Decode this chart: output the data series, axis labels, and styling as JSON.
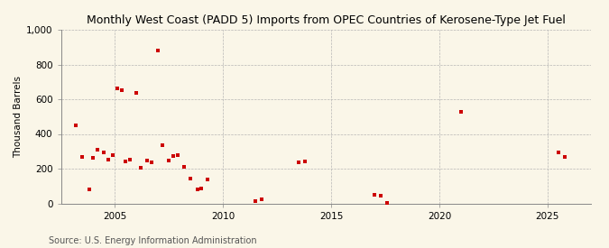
{
  "title": "Monthly West Coast (PADD 5) Imports from OPEC Countries of Kerosene-Type Jet Fuel",
  "ylabel": "Thousand Barrels",
  "source": "Source: U.S. Energy Information Administration",
  "background_color": "#faf6e8",
  "point_color": "#cc0000",
  "xlim": [
    2002.5,
    2027.0
  ],
  "ylim": [
    0,
    1000
  ],
  "xticks": [
    2005,
    2010,
    2015,
    2020,
    2025
  ],
  "yticks": [
    0,
    200,
    400,
    600,
    800,
    1000
  ],
  "ytick_labels": [
    "0",
    "200",
    "400",
    "600",
    "800",
    "1,000"
  ],
  "scatter_x": [
    2003.2,
    2003.5,
    2003.8,
    2004.0,
    2004.2,
    2004.5,
    2004.7,
    2004.9,
    2005.1,
    2005.3,
    2005.5,
    2005.7,
    2006.0,
    2006.2,
    2006.5,
    2006.7,
    2007.0,
    2007.2,
    2007.5,
    2007.7,
    2007.9,
    2008.2,
    2008.5,
    2008.8,
    2009.0,
    2009.3,
    2011.5,
    2011.8,
    2013.5,
    2013.8,
    2017.0,
    2017.3,
    2017.6,
    2021.0,
    2025.5,
    2025.8
  ],
  "scatter_y": [
    450,
    270,
    80,
    260,
    310,
    295,
    250,
    280,
    660,
    650,
    240,
    250,
    635,
    205,
    245,
    235,
    880,
    335,
    245,
    275,
    280,
    210,
    145,
    80,
    85,
    140,
    15,
    25,
    235,
    240,
    50,
    45,
    5,
    525,
    295,
    270
  ],
  "title_fontsize": 9,
  "tick_fontsize": 7.5,
  "ylabel_fontsize": 7.5,
  "source_fontsize": 7
}
